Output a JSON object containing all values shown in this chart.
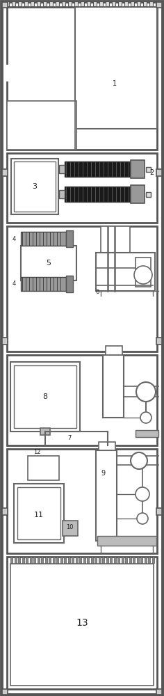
{
  "fig_width": 2.36,
  "fig_height": 10.0,
  "dpi": 100,
  "lc": "#444444",
  "dc": "#111111",
  "fc": "#555555"
}
